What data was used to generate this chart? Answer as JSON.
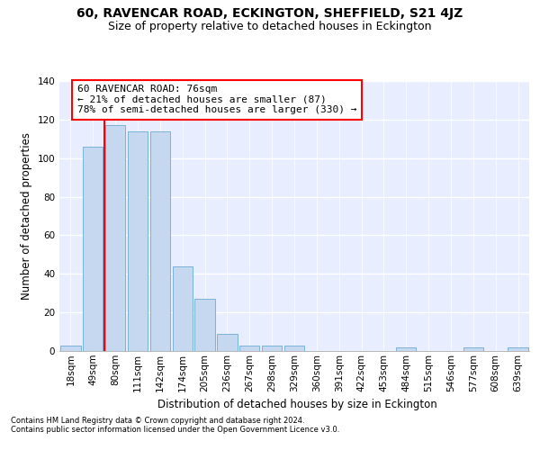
{
  "title": "60, RAVENCAR ROAD, ECKINGTON, SHEFFIELD, S21 4JZ",
  "subtitle": "Size of property relative to detached houses in Eckington",
  "xlabel": "Distribution of detached houses by size in Eckington",
  "ylabel": "Number of detached properties",
  "footnote1": "Contains HM Land Registry data © Crown copyright and database right 2024.",
  "footnote2": "Contains public sector information licensed under the Open Government Licence v3.0.",
  "bar_labels": [
    "18sqm",
    "49sqm",
    "80sqm",
    "111sqm",
    "142sqm",
    "174sqm",
    "205sqm",
    "236sqm",
    "267sqm",
    "298sqm",
    "329sqm",
    "360sqm",
    "391sqm",
    "422sqm",
    "453sqm",
    "484sqm",
    "515sqm",
    "546sqm",
    "577sqm",
    "608sqm",
    "639sqm"
  ],
  "bar_values": [
    3,
    106,
    117,
    114,
    114,
    44,
    27,
    9,
    3,
    3,
    3,
    0,
    0,
    0,
    0,
    2,
    0,
    0,
    2,
    0,
    2
  ],
  "bar_color": "#c5d8f0",
  "bar_edge_color": "#6aaad4",
  "annotation_line1": "60 RAVENCAR ROAD: 76sqm",
  "annotation_line2": "← 21% of detached houses are smaller (87)",
  "annotation_line3": "78% of semi-detached houses are larger (330) →",
  "red_line_x": 1.5,
  "ylim": [
    0,
    140
  ],
  "yticks": [
    0,
    20,
    40,
    60,
    80,
    100,
    120,
    140
  ],
  "background_color": "#e8eeff",
  "grid_color": "#d0d8f0",
  "title_fontsize": 10,
  "subtitle_fontsize": 9,
  "axis_label_fontsize": 8.5,
  "tick_fontsize": 7.5,
  "annotation_fontsize": 8
}
